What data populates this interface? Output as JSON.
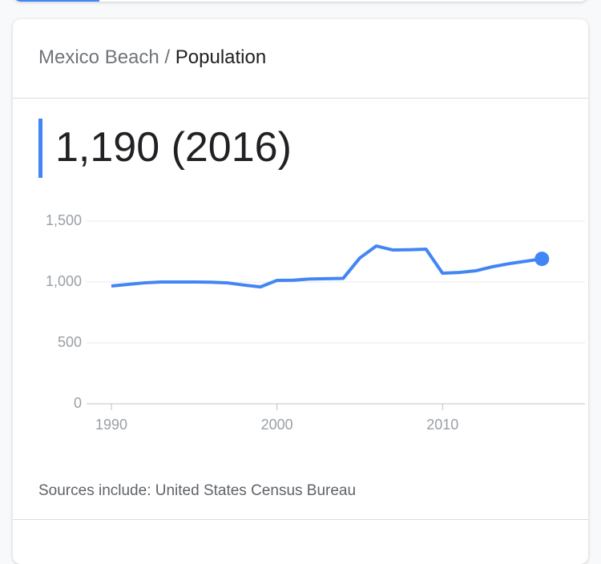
{
  "header": {
    "place": "Mexico Beach",
    "separator": "/",
    "topic": "Population"
  },
  "headline": "1,190 (2016)",
  "chart_data": {
    "type": "line",
    "color": "#4285f4",
    "marker_last": true,
    "grid": true,
    "x": [
      1990,
      1991,
      1992,
      1993,
      1994,
      1995,
      1996,
      1997,
      1998,
      1999,
      2000,
      2001,
      2002,
      2003,
      2004,
      2005,
      2006,
      2007,
      2008,
      2009,
      2010,
      2011,
      2012,
      2013,
      2014,
      2015,
      2016
    ],
    "values": [
      967,
      980,
      993,
      1000,
      1000,
      1000,
      998,
      993,
      975,
      960,
      1013,
      1015,
      1025,
      1027,
      1030,
      1197,
      1296,
      1263,
      1265,
      1270,
      1072,
      1078,
      1092,
      1125,
      1150,
      1170,
      1190
    ],
    "xlim": [
      1988.5,
      2018.6
    ],
    "xticks": [
      1990,
      2000,
      2010
    ],
    "ylim": [
      0,
      1500
    ],
    "yticks": [
      0,
      500,
      {
        "value": 1000,
        "label": "1,000"
      },
      {
        "value": 1500,
        "label": "1,500"
      }
    ]
  },
  "source": "Sources include: United States Census Bureau"
}
